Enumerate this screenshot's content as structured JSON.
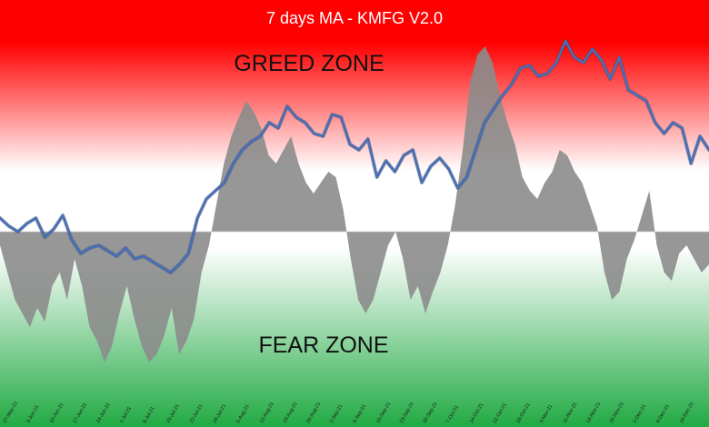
{
  "chart_data": {
    "type": "area",
    "title": "7 days MA - KMFG V2.0",
    "zone_labels": {
      "top": "GREED ZONE",
      "bottom": "FEAR ZONE"
    },
    "background": {
      "top": "#ff0000",
      "middle": "#ffffff",
      "bottom": "#22aa44"
    },
    "colors": {
      "area": "#8c8c8c",
      "ma_line": "#4a6fb5",
      "ma_line_shadow": "#243b66"
    },
    "ylim": [
      -55,
      75
    ],
    "baseline": 0,
    "grid": false,
    "x_tick_labels": [
      "27-May-21",
      "3-Jun-21",
      "10-Jun-21",
      "17-Jun-21",
      "24-Jun-21",
      "1-Jul-21",
      "8-Jul-21",
      "15-Jul-21",
      "22-Jul-21",
      "29-Jul-21",
      "5-Aug-21",
      "12-Aug-21",
      "19-Aug-21",
      "26-Aug-21",
      "2-Sep-21",
      "9-Sep-21",
      "16-Sep-21",
      "23-Sep-21",
      "30-Sep-21",
      "7-Oct-21",
      "14-Oct-21",
      "21-Oct-21",
      "28-Oct-21",
      "4-Nov-21",
      "11-Nov-21",
      "18-Nov-21",
      "25-Nov-21",
      "2-Dec-21",
      "9-Dec-21",
      "16-Dec-21"
    ],
    "series": [
      {
        "role": "index",
        "values": [
          -5,
          -15,
          -25,
          -30,
          -35,
          -28,
          -33,
          -20,
          -15,
          -25,
          -10,
          -20,
          -35,
          -40,
          -48,
          -42,
          -30,
          -20,
          -32,
          -42,
          -48,
          -45,
          -38,
          -28,
          -45,
          -40,
          -32,
          -15,
          -5,
          10,
          25,
          35,
          42,
          48,
          44,
          38,
          28,
          25,
          30,
          35,
          25,
          18,
          14,
          18,
          22,
          20,
          8,
          -10,
          -25,
          -30,
          -25,
          -15,
          -5,
          0,
          -10,
          -25,
          -20,
          -30,
          -22,
          -15,
          -5,
          10,
          30,
          55,
          65,
          68,
          62,
          50,
          40,
          32,
          20,
          15,
          12,
          18,
          22,
          30,
          28,
          22,
          18,
          10,
          2,
          -15,
          -25,
          -22,
          -10,
          -3,
          6,
          15,
          -5,
          -15,
          -18,
          -8,
          -5,
          -10,
          -15,
          -12
        ]
      },
      {
        "role": "ma",
        "values": [
          5,
          2,
          0,
          3,
          5,
          -2,
          1,
          6,
          -3,
          -8,
          -6,
          -5,
          -7,
          -9,
          -6,
          -10,
          -9,
          -11,
          -13,
          -15,
          -12,
          -8,
          5,
          12,
          15,
          18,
          25,
          30,
          33,
          35,
          40,
          38,
          46,
          42,
          40,
          36,
          35,
          43,
          42,
          32,
          30,
          34,
          20,
          26,
          22,
          28,
          30,
          18,
          24,
          27,
          23,
          16,
          20,
          30,
          40,
          45,
          50,
          54,
          60,
          61,
          57,
          58,
          62,
          70,
          64,
          62,
          67,
          63,
          56,
          64,
          52,
          50,
          48,
          40,
          36,
          40,
          38,
          25,
          35,
          30
        ]
      }
    ]
  }
}
